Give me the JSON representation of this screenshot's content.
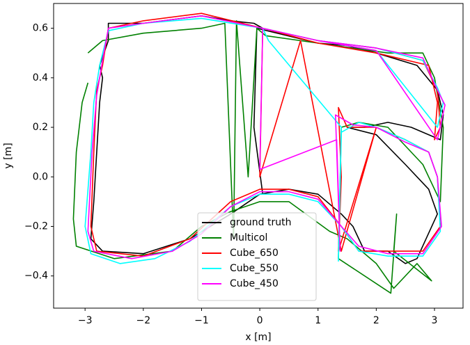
{
  "chart_data": {
    "type": "line",
    "x_label": "x [m]",
    "y_label": "y [m]",
    "xlim": [
      -3.54,
      3.49
    ],
    "ylim": [
      -0.53,
      0.7
    ],
    "xticks": [
      {
        "value": -3,
        "label": "−3"
      },
      {
        "value": -2,
        "label": "−2"
      },
      {
        "value": -1,
        "label": "−1"
      },
      0,
      1,
      2,
      3
    ],
    "yticks": [
      {
        "value": -0.4,
        "label": "−0.4"
      },
      {
        "value": -0.2,
        "label": "−0.2"
      },
      {
        "value": 0,
        "label": "0.0"
      },
      0.2,
      0.4,
      0.6
    ],
    "legend_loc": "lower center",
    "series": [
      {
        "name": "ground truth",
        "color": "#000000",
        "x": [
          0.05,
          -0.1,
          -0.05,
          0.3,
          1,
          1.5,
          2,
          2.7,
          3.05,
          3.15,
          3.1,
          2.6,
          2.2,
          1.8,
          1.5,
          2,
          2.5,
          2.9,
          3.05,
          2.7,
          2.5,
          2.2,
          1.8,
          1.6,
          1.4,
          1,
          0.5,
          0,
          -0.5,
          -1.2,
          -2,
          -2.7,
          -2.9,
          -2.85,
          -2.8,
          -2.75,
          -2.7,
          -2.75,
          -2.6,
          -2.6,
          -2,
          -1,
          -0.5,
          -0.1,
          0.05
        ],
        "values": [
          -0.07,
          0.2,
          0.6,
          0.58,
          0.54,
          0.53,
          0.5,
          0.45,
          0.35,
          0.25,
          0.15,
          0.2,
          0.22,
          0.2,
          0.2,
          0.17,
          0.05,
          -0.05,
          -0.15,
          -0.33,
          -0.35,
          -0.3,
          -0.3,
          -0.2,
          -0.15,
          -0.07,
          -0.05,
          -0.07,
          -0.15,
          -0.25,
          -0.31,
          -0.3,
          -0.25,
          -0.1,
          0.1,
          0.3,
          0.4,
          0.45,
          0.55,
          0.62,
          0.62,
          0.65,
          0.63,
          0.62,
          0.6
        ]
      },
      {
        "name": "Multicol",
        "color": "#008000",
        "x": [
          -2.95,
          -3.05,
          -3.15,
          -3.2,
          -3.15,
          -2.5,
          -1.5,
          -1,
          -0.5,
          0,
          0.5,
          1.2,
          1.5,
          2,
          2.3,
          2.7,
          2.95,
          2.3,
          2.35,
          2.25,
          1.35,
          1.4,
          1.7,
          2.2,
          2.8,
          3.1,
          3.15,
          3.0,
          2.8,
          2.2,
          1,
          0.1,
          -0.05,
          -0.2,
          -0.4,
          -0.45,
          -0.6,
          -1,
          -2,
          -2.7,
          -2.95
        ],
        "values": [
          0.38,
          0.3,
          0.1,
          -0.17,
          -0.28,
          -0.33,
          -0.3,
          -0.2,
          -0.14,
          -0.1,
          -0.1,
          -0.22,
          -0.25,
          -0.35,
          -0.45,
          -0.35,
          -0.42,
          -0.3,
          -0.15,
          -0.47,
          -0.33,
          0.2,
          0.22,
          0.2,
          0.05,
          -0.1,
          0.2,
          0.4,
          0.5,
          0.5,
          0.54,
          0.57,
          0.6,
          0.0,
          0.63,
          -0.25,
          0.62,
          0.6,
          0.58,
          0.55,
          0.5
        ]
      },
      {
        "name": "Cube_650",
        "color": "#ff0000",
        "x": [
          -2.7,
          -2.8,
          -2.85,
          -2.9,
          -2.8,
          -2,
          -1.2,
          -0.5,
          0,
          0.5,
          1,
          1.4,
          1.7,
          2.2,
          2.8,
          3.1,
          3.05,
          2.9,
          2.5,
          2,
          1.5,
          1.35,
          1.4,
          1.35,
          2,
          1.4,
          0.7,
          0.0,
          0.05,
          1,
          2,
          2.8,
          3.05,
          3.1,
          3.0,
          3.05,
          2.9,
          2.0,
          1.0,
          0.05,
          -1,
          -2,
          -2.6,
          -2.7
        ],
        "values": [
          0.45,
          0.35,
          0.1,
          -0.2,
          -0.3,
          -0.32,
          -0.25,
          -0.1,
          -0.05,
          -0.05,
          -0.08,
          -0.2,
          -0.3,
          -0.3,
          -0.3,
          -0.2,
          0,
          0.1,
          0.15,
          0.2,
          0.2,
          0.28,
          0.0,
          -0.3,
          0.2,
          -0.3,
          0.55,
          0.0,
          0.6,
          0.55,
          0.52,
          0.47,
          0.35,
          0.2,
          0.15,
          0.3,
          0.45,
          0.5,
          0.54,
          0.6,
          0.66,
          0.63,
          0.6,
          0.45
        ]
      },
      {
        "name": "Cube_550",
        "color": "#00ffff",
        "x": [
          -2.75,
          -2.85,
          -2.9,
          -3.0,
          -2.9,
          -2.4,
          -1.8,
          -1.2,
          -0.5,
          0,
          0.5,
          1,
          1.4,
          1.7,
          2.2,
          2.8,
          3.1,
          3.05,
          2.9,
          2.5,
          2.0,
          1.7,
          1.4,
          1.35,
          1.4,
          0.15,
          0.05,
          1,
          2,
          2.8,
          3.05,
          3.15,
          3.05,
          2.0,
          1.0,
          0.05,
          -1,
          -2,
          -2.6,
          -2.75
        ],
        "values": [
          0.45,
          0.3,
          0.1,
          -0.2,
          -0.31,
          -0.35,
          -0.33,
          -0.26,
          -0.12,
          -0.07,
          -0.07,
          -0.1,
          -0.2,
          -0.3,
          -0.32,
          -0.32,
          -0.22,
          0.0,
          0.1,
          0.15,
          0.2,
          0.22,
          0.18,
          -0.34,
          0.2,
          0.55,
          0.6,
          0.55,
          0.52,
          0.47,
          0.36,
          0.3,
          0.2,
          0.51,
          0.55,
          0.6,
          0.64,
          0.62,
          0.59,
          0.45
        ]
      },
      {
        "name": "Cube_450",
        "color": "#ff00ff",
        "x": [
          -2.7,
          -2.8,
          -2.88,
          -2.95,
          -2.85,
          -2.2,
          -1.5,
          -1,
          -0.5,
          0,
          0.5,
          1,
          1.4,
          1.7,
          2.2,
          2.8,
          3.12,
          3.05,
          2.9,
          2.5,
          2.0,
          1.6,
          1.3,
          1.38,
          1.32,
          0.0,
          0.05,
          1,
          2,
          2.8,
          3.05,
          3.18,
          3.05,
          2.0,
          1.0,
          0.05,
          -1,
          -2,
          -2.6,
          -2.7
        ],
        "values": [
          0.47,
          0.33,
          0.1,
          -0.22,
          -0.3,
          -0.33,
          -0.3,
          -0.23,
          -0.12,
          -0.06,
          -0.06,
          -0.09,
          -0.2,
          -0.28,
          -0.31,
          -0.31,
          -0.2,
          0.0,
          0.1,
          0.14,
          0.2,
          0.21,
          0.25,
          -0.3,
          0.15,
          0.03,
          0.6,
          0.55,
          0.52,
          0.48,
          0.35,
          0.29,
          0.15,
          0.51,
          0.55,
          0.6,
          0.65,
          0.62,
          0.6,
          0.47
        ]
      }
    ]
  }
}
